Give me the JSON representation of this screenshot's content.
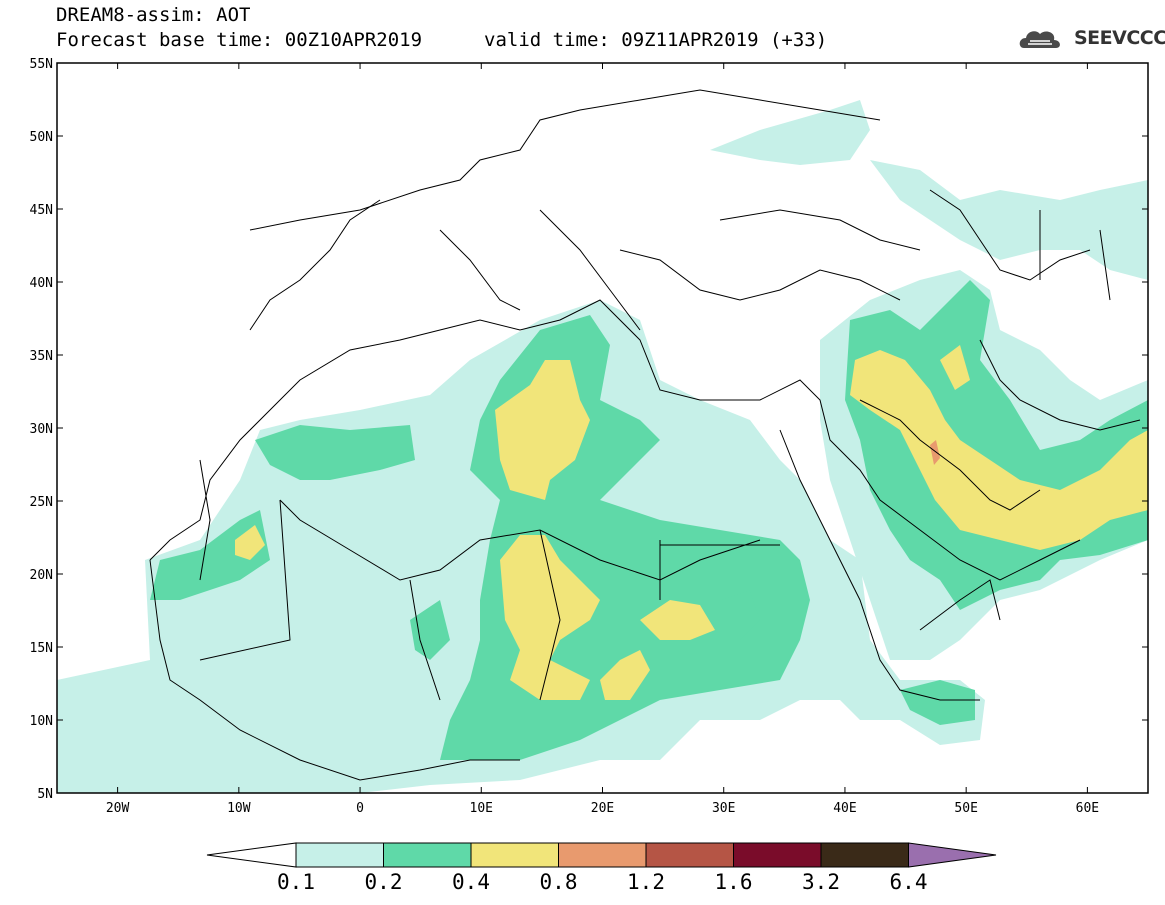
{
  "header": {
    "title": "DREAM8-assim: AOT",
    "base_time": "Forecast base time: 00Z10APR2019",
    "valid_time": "valid time: 09Z11APR2019 (+33)",
    "logo_text": "SEEVCCC",
    "logo_icon": "cloud-icon"
  },
  "map": {
    "lon_range": [
      -25,
      65
    ],
    "lat_range": [
      5,
      55
    ],
    "lat_ticks": [
      "55N",
      "50N",
      "45N",
      "40N",
      "35N",
      "30N",
      "25N",
      "20N",
      "15N",
      "10N",
      "5N"
    ],
    "lat_values": [
      55,
      50,
      45,
      40,
      35,
      30,
      25,
      20,
      15,
      10,
      5
    ],
    "lon_ticks": [
      "20W",
      "10W",
      "0",
      "10E",
      "20E",
      "30E",
      "40E",
      "50E",
      "60E"
    ],
    "lon_values": [
      -20,
      -10,
      0,
      10,
      20,
      30,
      40,
      50,
      60
    ],
    "variable": "AOT"
  },
  "colorbar": {
    "levels": [
      "0.1",
      "0.2",
      "0.4",
      "0.8",
      "1.2",
      "1.6",
      "3.2",
      "6.4"
    ],
    "colors": [
      "#c6f0e8",
      "#5fd9a8",
      "#f1e57a",
      "#e89a6e",
      "#b55545",
      "#7a0c2a",
      "#3a2a18",
      "#9a6fae"
    ],
    "under_color": "#ffffff"
  }
}
